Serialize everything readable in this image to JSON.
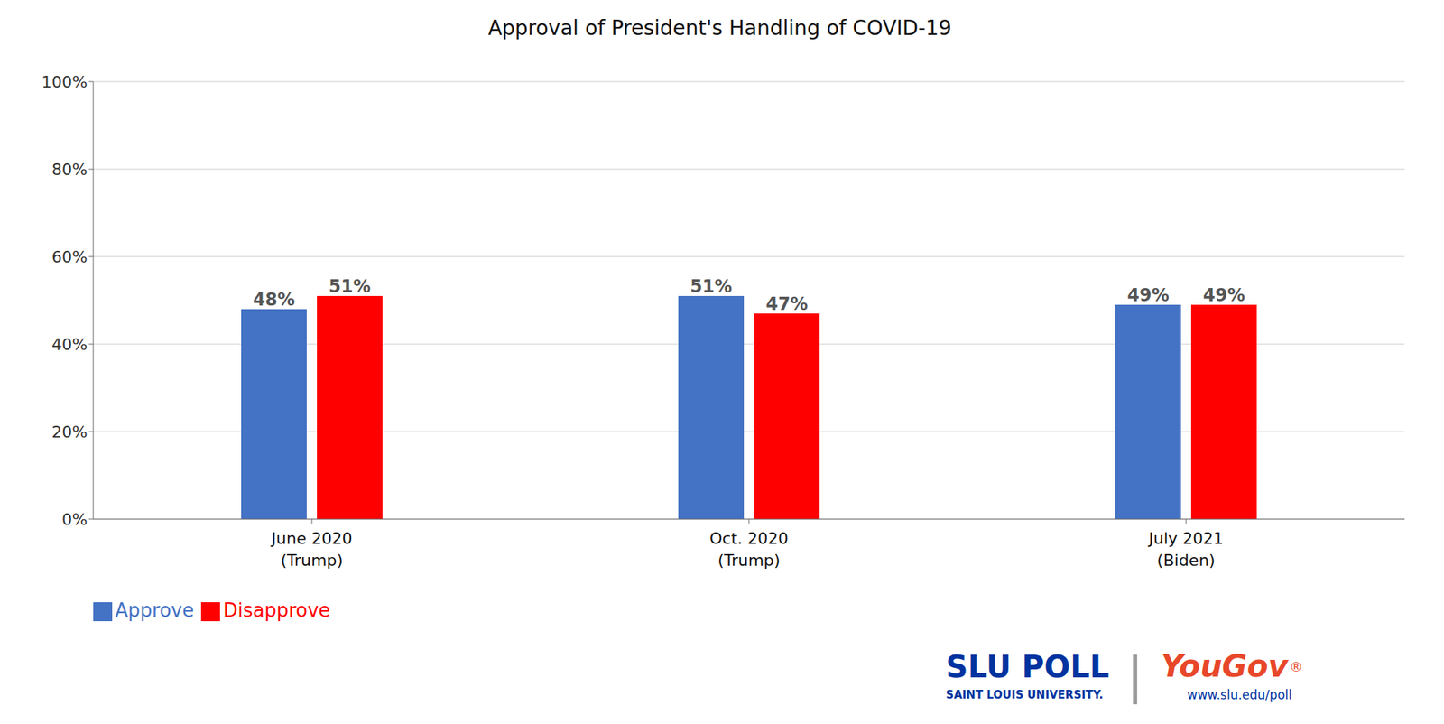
{
  "chart_data": {
    "type": "bar",
    "title": "Approval of President's Handling of COVID-19",
    "categories": [
      "June 2020\n(Trump)",
      "Oct. 2020\n(Trump)",
      "July 2021\n(Biden)"
    ],
    "series": [
      {
        "name": "Approve",
        "color": "#4472C4",
        "values": [
          48,
          51,
          49
        ],
        "value_labels": [
          "48%",
          "51%",
          "49%"
        ]
      },
      {
        "name": "Disapprove",
        "color": "#FF0000",
        "values": [
          51,
          47,
          49
        ],
        "value_labels": [
          "51%",
          "47%",
          "49%"
        ]
      }
    ],
    "ylim": [
      0,
      100
    ],
    "yticks": [
      {
        "value": 0,
        "label": "0%"
      },
      {
        "value": 20,
        "label": "20%"
      },
      {
        "value": 40,
        "label": "40%"
      },
      {
        "value": 60,
        "label": "60%"
      },
      {
        "value": 80,
        "label": "80%"
      },
      {
        "value": 100,
        "label": "100%"
      }
    ],
    "grid": true,
    "legend": "lower left",
    "data_labels": true,
    "annotations": [
      {
        "text": "SLU POLL",
        "color": "#0033A0"
      },
      {
        "text": "SAINT LOUIS UNIVERSITY.",
        "color": "#0033A0"
      },
      {
        "text": "|",
        "color": "#999999"
      },
      {
        "text": "YouGov",
        "color": "#E8472A"
      },
      {
        "text": "®",
        "color": "#E8472A"
      },
      {
        "text": "www.slu.edu/poll",
        "color": "#0033A0"
      }
    ]
  }
}
